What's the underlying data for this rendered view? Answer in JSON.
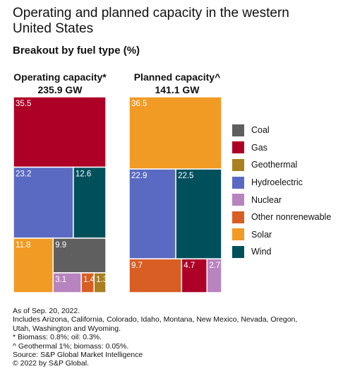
{
  "title": "Operating and planned capacity in the western United States",
  "subtitle": "Breakout by fuel type (%)",
  "colors": {
    "Coal": "#5f5f5f",
    "Gas": "#ae0027",
    "Geothermal": "#a97f20",
    "Hydroelectric": "#5a6ac2",
    "Nuclear": "#b884c0",
    "Other nonrenewable": "#d85e24",
    "Solar": "#f19a24",
    "Wind": "#00505c"
  },
  "legend": [
    "Coal",
    "Gas",
    "Geothermal",
    "Hydroelectric",
    "Nuclear",
    "Other nonrenewable",
    "Solar",
    "Wind"
  ],
  "chart_data": [
    {
      "type": "treemap",
      "title": "Operating capacity*",
      "total": "235.9 GW",
      "series": [
        {
          "name": "Gas",
          "value": 35.5,
          "label": "35.5"
        },
        {
          "name": "Hydroelectric",
          "value": 23.2,
          "label": "23.2"
        },
        {
          "name": "Wind",
          "value": 12.6,
          "label": "12.6"
        },
        {
          "name": "Solar",
          "value": 11.8,
          "label": "11.8"
        },
        {
          "name": "Coal",
          "value": 9.9,
          "label": "9.9"
        },
        {
          "name": "Nuclear",
          "value": 3.1,
          "label": "3.1"
        },
        {
          "name": "Other nonrenewable",
          "value": 1.4,
          "label": "1.4"
        },
        {
          "name": "Geothermal",
          "value": 1.3,
          "label": "1.3"
        }
      ]
    },
    {
      "type": "treemap",
      "title": "Planned capacity^",
      "total": "141.1 GW",
      "series": [
        {
          "name": "Solar",
          "value": 36.5,
          "label": "36.5"
        },
        {
          "name": "Hydroelectric",
          "value": 22.9,
          "label": "22.9"
        },
        {
          "name": "Wind",
          "value": 22.5,
          "label": "22.5"
        },
        {
          "name": "Other nonrenewable",
          "value": 9.7,
          "label": "9.7"
        },
        {
          "name": "Gas",
          "value": 4.7,
          "label": "4.7"
        },
        {
          "name": "Nuclear",
          "value": 2.7,
          "label": "2.7"
        }
      ]
    }
  ],
  "footnotes": [
    "As of Sep. 20, 2022.",
    "Includes Arizona, California, Colorado, Idaho, Montana, New Mexico, Nevada, Oregon,",
    "Utah, Washington and Wyoming.",
    "* Biomass: 0.8%; oil: 0.3%.",
    "^ Geothermal 1%; biomass: 0.05%.",
    "Source: S&P Global Market Intelligence",
    "© 2022 by S&P Global."
  ]
}
